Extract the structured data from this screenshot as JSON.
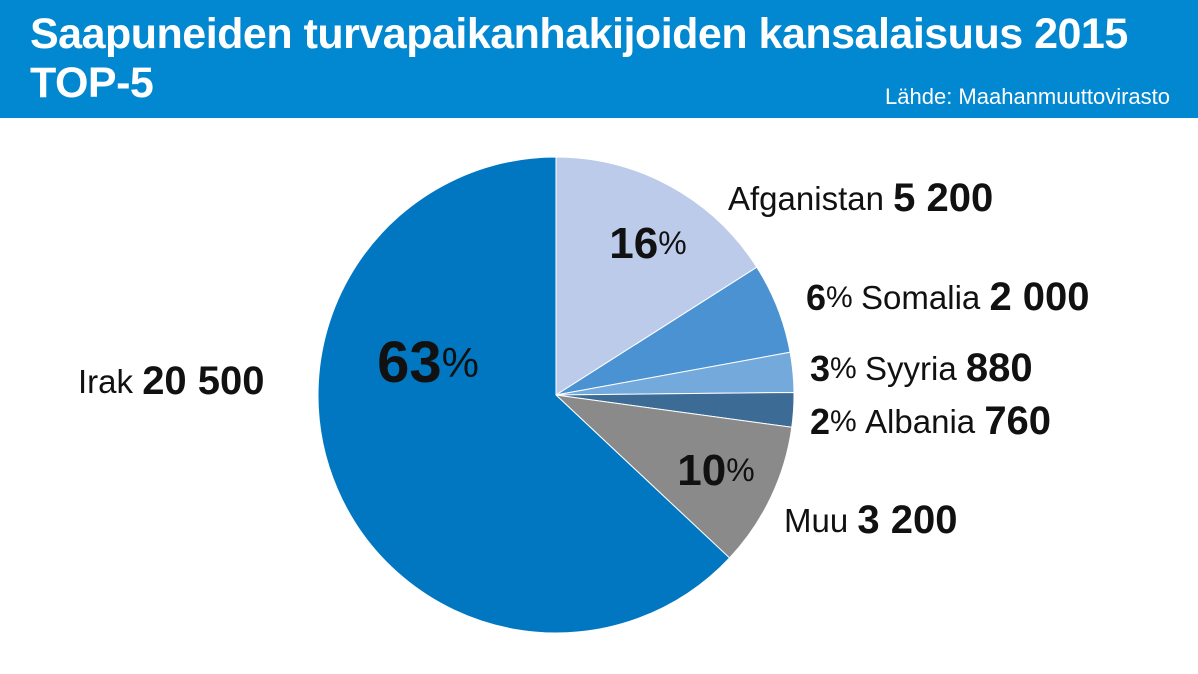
{
  "header": {
    "title_line1": "Saapuneiden turvapaikanhakijoiden kansalaisuus 2015",
    "title_line2": "TOP-5",
    "source": "Lähde: Maahanmuuttovirasto",
    "background": "#0288d1"
  },
  "chart_data": {
    "type": "pie",
    "slices": [
      {
        "name": "Afganistan",
        "value": 5200,
        "value_label": "5 200",
        "percent": "16",
        "color": "#bccbea"
      },
      {
        "name": "Somalia",
        "value": 2000,
        "value_label": "2 000",
        "percent": "6",
        "color": "#4b92d2"
      },
      {
        "name": "Syyria",
        "value": 880,
        "value_label": "880",
        "percent": "3",
        "color": "#74a9dc"
      },
      {
        "name": "Albania",
        "value": 760,
        "value_label": "760",
        "percent": "2",
        "color": "#3c6c96"
      },
      {
        "name": "Muu",
        "value": 3200,
        "value_label": "3 200",
        "percent": "10",
        "color": "#8a8a8a"
      },
      {
        "name": "Irak",
        "value": 20500,
        "value_label": "20 500",
        "percent": "63",
        "color": "#0077c0"
      }
    ],
    "percent_sign": "%"
  }
}
